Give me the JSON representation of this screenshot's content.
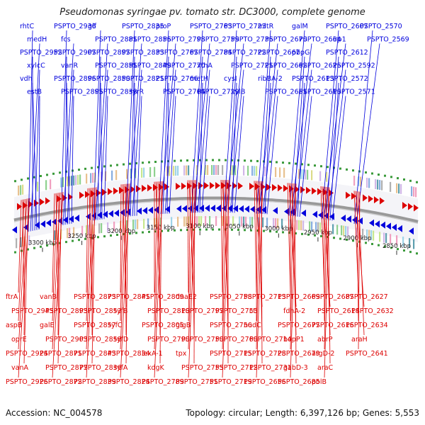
{
  "title": "Pseudomonas syringae pv. tomato str. DC3000, complete genome",
  "footer": {
    "accession": "Accession: NC_004578",
    "summary": "Topology: circular; Length: 6,397,126 bp; Genes: 5,553"
  },
  "colors": {
    "forward": "#0000dd",
    "reverse": "#dd0000",
    "axis": "#999999",
    "tick": "#3a9a3a",
    "scale_text": "#222222"
  },
  "scale_ticks": [
    "3300 kbp",
    "3250 kbp",
    "3200 kbp",
    "3150 kbp",
    "3100 kbp",
    "3050 kbp",
    "3000 kbp",
    "2950 kbp",
    "2900 kbp",
    "2850 kbp"
  ],
  "forward_genes": [
    "rhtC",
    "medH",
    "PSPTO_2952",
    "xylcC",
    "vdh",
    "estB",
    "PSPTO_2936",
    "fcs",
    "PSPTO_2907",
    "vanR",
    "PSPTO_2896",
    "PSPTO_2895",
    "glf",
    "PSPTO_2881",
    "PSPTO_2897",
    "PSPTO_2851",
    "PSPTO_2850",
    "PSPTO_2838",
    "PSPTO_2835",
    "PSPTO_2856",
    "PSPTO_2833",
    "PSPTO_2849",
    "PSPTO_2821",
    "syrR",
    "proP",
    "PSPTO_2798",
    "PSPTO_2767",
    "PSPTO_2770",
    "PSPTO_2766",
    "PSPTO_2764",
    "PSPTO_2763",
    "PSPTO_2759",
    "PSPTO_2784",
    "xthA",
    "metH",
    "PSPTO_2729",
    "PSPTO_2723",
    "PSPTO_2736",
    "PSPTO_2722",
    "PSPTO_2721",
    "cysI",
    "xylB",
    "mltR",
    "PSPTO_2670",
    "PSPTO_2667",
    "PSPTO_2662",
    "ribBA-2",
    "PSPTO_2651",
    "galM",
    "PSPTO_2664",
    "pbpG",
    "PSPTO_2626",
    "PSPTO_2613",
    "PSPTO_2610",
    "PSPTO_2607",
    "irp1",
    "PSPTO_2612",
    "PSPTO_2592",
    "PSPTO_2572",
    "PSPTO_2571",
    "PSPTO_2570",
    "PSPTO_2569"
  ],
  "reverse_genes": [
    "ftrA",
    "PSPTO_2945",
    "aspB",
    "oprE",
    "PSPTO_2924",
    "vanA",
    "PSPTO_2926",
    "vanB",
    "PSPTO_2893",
    "galE",
    "PSPTO_2903",
    "PSPTO_2871",
    "PSPTO_2877",
    "PSPTO_2872",
    "PSPTO_2873",
    "PSPTO_2853",
    "PSPTO_2857",
    "PSPTO_2858",
    "PSPTO_2843",
    "PSPTO_2836",
    "PSPTO_2839",
    "PSPTO_2841",
    "syfB",
    "syfC",
    "syfD",
    "PSPTO_2834",
    "syfA",
    "PSPTO_2824",
    "PSPTO_2809",
    "PSPTO_2810",
    "PSPTO_2805",
    "PSPTO_2790",
    "lexA-1",
    "kdgK",
    "PSPTO_2789",
    "dnaE2",
    "PSPTO_2797",
    "glgB",
    "PSPTO_2750",
    "tpx",
    "PSPTO_2755",
    "PSPTO_2751",
    "PSPTO_2758",
    "PSPTO_2753",
    "PSPTO_2756",
    "PSPTO_2760",
    "PSPTO_2715",
    "PSPTO_2712",
    "PSPTO_2719",
    "PSPTO_2713",
    "cti",
    "nudC",
    "PSPTO_2714",
    "PSPTO_2728",
    "PSPTO_2731",
    "PSPTO_2656",
    "PSPTO_2669",
    "fdhA-2",
    "PSPTO_2677",
    "hopP1",
    "PSPTO_2679",
    "gabD-3",
    "PSPTO_2685",
    "PSPTO_2687",
    "PSPTO_2614",
    "PSPTO_2616",
    "abrP",
    "argD-2",
    "araC",
    "polB",
    "PSPTO_2627",
    "PSPTO_2632",
    "PSPTO_2634",
    "araH",
    "PSPTO_2641"
  ]
}
